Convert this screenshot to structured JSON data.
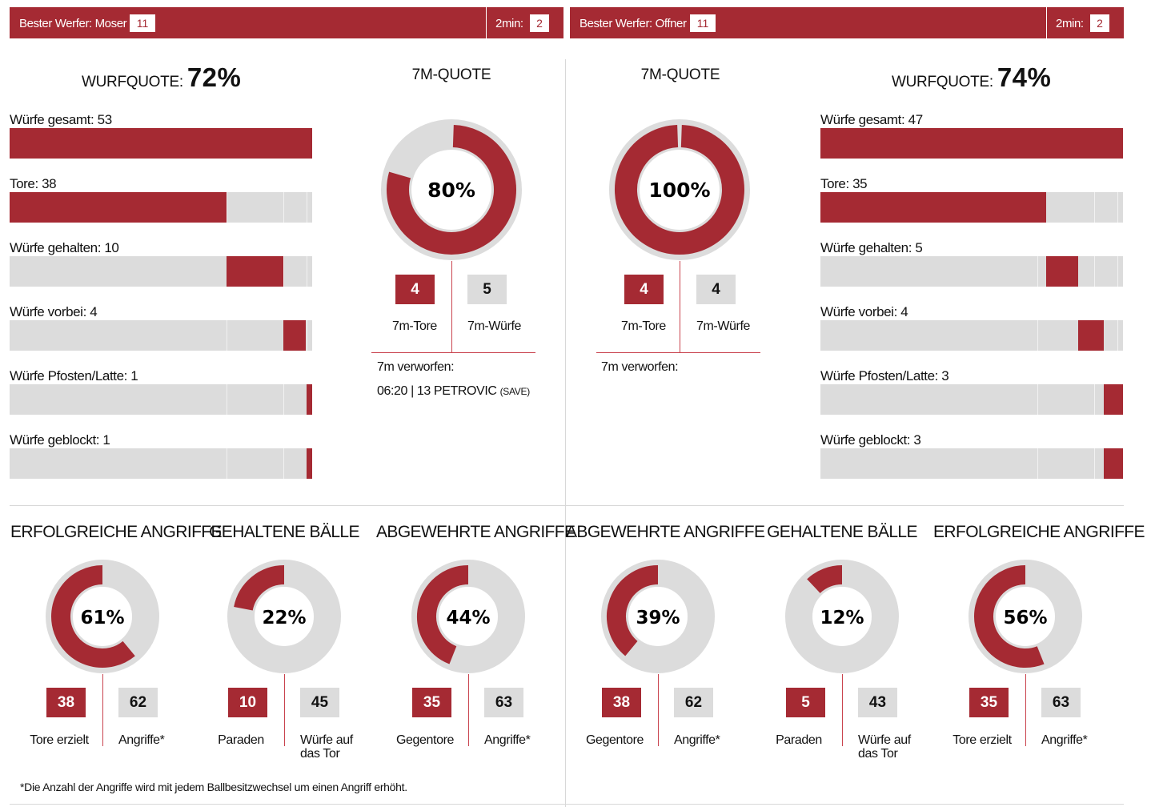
{
  "colors": {
    "accent": "#a52a33",
    "grey": "#dcdcdc"
  },
  "left": {
    "best_thrower_label": "Bester Werfer: Moser",
    "best_thrower_value": "11",
    "two_min_label": "2min:",
    "two_min_value": "2",
    "wurfquote_label": "WURFQUOTE:",
    "wurfquote_value": "72%",
    "seven_m_title": "7M-QUOTE",
    "seven_m_pct": "80%",
    "seven_m_fraction": 0.8,
    "seven_m_goals": "4",
    "seven_m_goals_label": "7m-Tore",
    "seven_m_throws": "5",
    "seven_m_throws_label": "7m-Würfe",
    "missed_label": "7m verworfen:",
    "missed_entry_main": "06:20 | 13 PETROVIC",
    "missed_entry_note": "(SAVE)",
    "bars": [
      {
        "label": "Würfe gesamt: 53",
        "start": 0,
        "fraction": 1.0
      },
      {
        "label": "Tore: 38",
        "start": 0,
        "fraction": 0.717
      },
      {
        "label": "Würfe gehalten: 10",
        "start": 0.717,
        "fraction": 0.189
      },
      {
        "label": "Würfe vorbei: 4",
        "start": 0.906,
        "fraction": 0.075
      },
      {
        "label": "Würfe Pfosten/Latte: 1",
        "start": 0.981,
        "fraction": 0.019
      },
      {
        "label": "Würfe geblockt: 1",
        "start": 0.981,
        "fraction": 0.019
      }
    ]
  },
  "right": {
    "best_thrower_label": "Bester Werfer: Offner",
    "best_thrower_value": "11",
    "two_min_label": "2min:",
    "two_min_value": "2",
    "wurfquote_label": "WURFQUOTE:",
    "wurfquote_value": "74%",
    "seven_m_title": "7M-QUOTE",
    "seven_m_pct": "100%",
    "seven_m_fraction": 1.0,
    "seven_m_goals": "4",
    "seven_m_goals_label": "7m-Tore",
    "seven_m_throws": "4",
    "seven_m_throws_label": "7m-Würfe",
    "missed_label": "7m verworfen:",
    "bars": [
      {
        "label": "Würfe gesamt: 47",
        "start": 0,
        "fraction": 1.0
      },
      {
        "label": "Tore: 35",
        "start": 0,
        "fraction": 0.745
      },
      {
        "label": "Würfe gehalten: 5",
        "start": 0.745,
        "fraction": 0.106
      },
      {
        "label": "Würfe vorbei: 4",
        "start": 0.851,
        "fraction": 0.085
      },
      {
        "label": "Würfe Pfosten/Latte: 3",
        "start": 0.936,
        "fraction": 0.064
      },
      {
        "label": "Würfe geblockt: 3",
        "start": 0.936,
        "fraction": 0.064
      }
    ]
  },
  "bottom": [
    {
      "title": "ERFOLGREICHE ANGRIFFE",
      "pct": "61%",
      "fraction": 0.61,
      "a": "38",
      "a_label": "Tore erzielt",
      "b": "62",
      "b_label": "Angriffe*"
    },
    {
      "title": "GEHALTENE BÄLLE",
      "pct": "22%",
      "fraction": 0.22,
      "a": "10",
      "a_label": "Paraden",
      "b": "45",
      "b_label": "Würfe auf das Tor"
    },
    {
      "title": "ABGEWEHRTE ANGRIFFE",
      "pct": "44%",
      "fraction": 0.44,
      "a": "35",
      "a_label": "Gegentore",
      "b": "63",
      "b_label": "Angriffe*"
    },
    {
      "title": "ABGEWEHRTE ANGRIFFE",
      "pct": "39%",
      "fraction": 0.39,
      "a": "38",
      "a_label": "Gegentore",
      "b": "62",
      "b_label": "Angriffe*"
    },
    {
      "title": "GEHALTENE BÄLLE",
      "pct": "12%",
      "fraction": 0.12,
      "a": "5",
      "a_label": "Paraden",
      "b": "43",
      "b_label": "Würfe auf das Tor"
    },
    {
      "title": "ERFOLGREICHE ANGRIFFE",
      "pct": "56%",
      "fraction": 0.56,
      "a": "35",
      "a_label": "Tore erzielt",
      "b": "63",
      "b_label": "Angriffe*"
    }
  ],
  "footnote": "*Die Anzahl der Angriffe wird mit jedem Ballbesitzwechsel um einen Angriff erhöht."
}
